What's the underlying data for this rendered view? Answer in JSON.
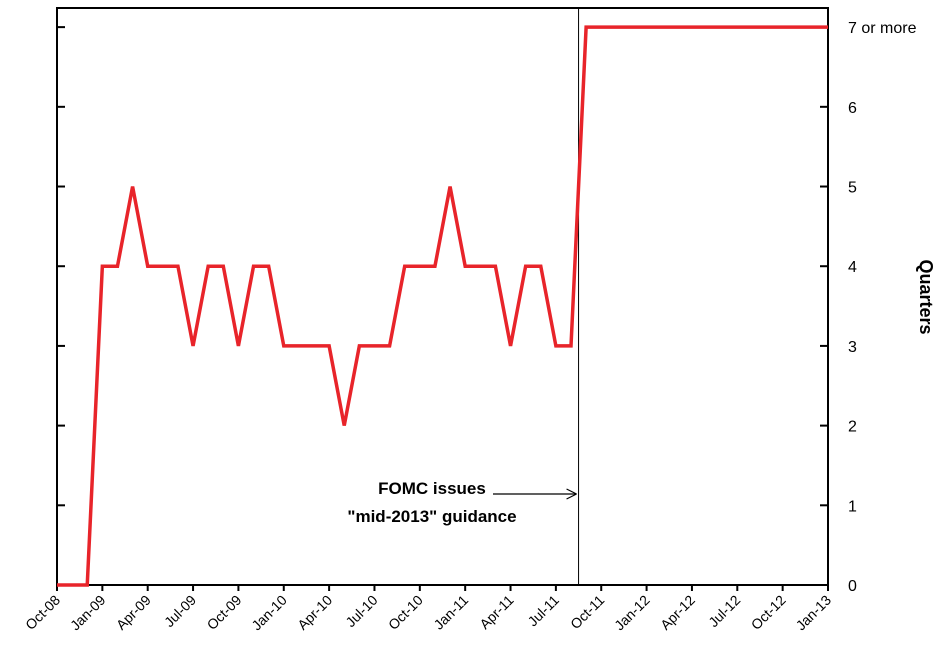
{
  "chart_data": {
    "type": "line",
    "categories": [
      "Oct-08",
      null,
      null,
      "Jan-09",
      null,
      null,
      "Apr-09",
      null,
      null,
      "Jul-09",
      null,
      null,
      "Oct-09",
      null,
      null,
      "Jan-10",
      null,
      null,
      "Apr-10",
      null,
      null,
      "Jul-10",
      null,
      null,
      "Oct-10",
      null,
      null,
      "Jan-11",
      null,
      null,
      "Apr-11",
      null,
      null,
      "Jul-11",
      null,
      null,
      "Oct-11",
      null,
      null,
      "Jan-12",
      null,
      null,
      "Apr-12",
      null,
      null,
      "Jul-12",
      null,
      null,
      "Oct-12",
      null,
      null,
      "Jan-13"
    ],
    "series": [
      {
        "name": null,
        "color": "#e8242a",
        "values": [
          0,
          0,
          0,
          4,
          4,
          5,
          4,
          4,
          4,
          3,
          4,
          4,
          3,
          4,
          4,
          3,
          3,
          3,
          3,
          2,
          3,
          3,
          3,
          4,
          4,
          4,
          5,
          4,
          4,
          4,
          3,
          4,
          4,
          3,
          3,
          7,
          7,
          7,
          7,
          7,
          7,
          7,
          7,
          7,
          7,
          7,
          7,
          7,
          7,
          7,
          7,
          7
        ]
      }
    ],
    "ylabel": "Quarters",
    "ylim": [
      0,
      7.24
    ],
    "yticks": [
      0,
      1,
      2,
      3,
      4,
      5,
      6,
      {
        "value": 7,
        "label": "7 or more"
      }
    ],
    "annotation": [
      "FOMC issues",
      "\"mid-2013\" guidance"
    ]
  }
}
